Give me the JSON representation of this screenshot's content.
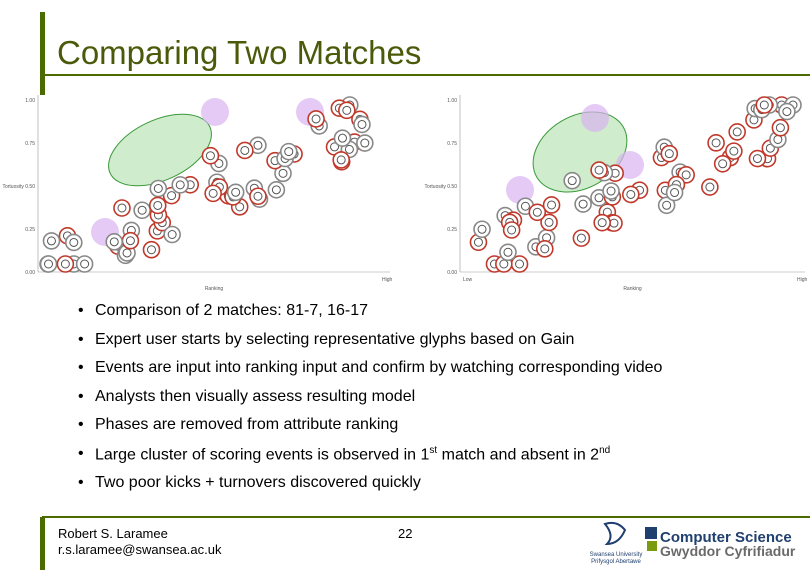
{
  "header": {
    "title": "Comparing Two Matches"
  },
  "plots": [
    {
      "y_labels": [
        "1.00",
        "0.75",
        "Tortuosity 0.50",
        "0.25",
        "0.00"
      ],
      "x_label": "Ranking",
      "x_end": "High"
    },
    {
      "y_labels": [
        "1.00",
        "0.75",
        "Tortuosity 0.50",
        "0.25",
        "0.00"
      ],
      "x_label": "Ranking",
      "x_start": "Low",
      "x_end": "High"
    }
  ],
  "bullets": [
    [
      "Comparison of 2 matches: 81-7, 16-17"
    ],
    [
      "Expert user starts by selecting representative glyphs based on Gain"
    ],
    [
      "Events are input into ranking input and confirm by watching corresponding video"
    ],
    [
      "Analysts then visually assess resulting model"
    ],
    [
      "Phases are removed from attribute ranking"
    ],
    [
      "Large cluster of scoring events is observed in 1",
      "st",
      " match and absent in 2",
      "nd"
    ],
    [
      "Two poor kicks + turnovers discovered quickly"
    ]
  ],
  "footer": {
    "author": "Robert S. Laramee",
    "email": "r.s.laramee@swansea.ac.uk",
    "page": "22",
    "logo_left": [
      "Swansea University",
      "Prifysgol Abertawe"
    ],
    "logo_right": [
      "Computer Science",
      "Gwyddor Cyfrifiadur"
    ]
  }
}
